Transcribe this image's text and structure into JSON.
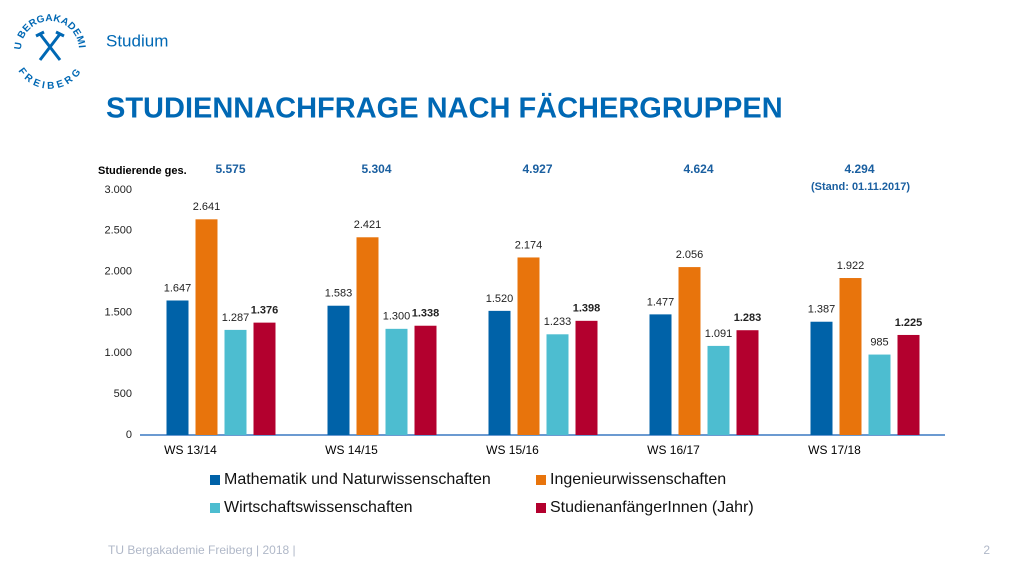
{
  "header": {
    "section": "Studium",
    "title": "STUDIENNACHFRAGE NACH FÄCHERGRUPPEN",
    "logo_top": "TU BERGAKADEMIE",
    "logo_bottom": "FREIBERG"
  },
  "chart_data": {
    "type": "bar",
    "categories": [
      "WS 13/14",
      "WS 14/15",
      "WS 15/16",
      "WS 16/17",
      "WS 17/18"
    ],
    "series": [
      {
        "name": "Mathematik und Naturwissenschaften",
        "color": "#0062a8",
        "values": [
          1647,
          1583,
          1520,
          1477,
          1387
        ],
        "value_labels": [
          "1.647",
          "1.583",
          "1.520",
          "1.477",
          "1.387"
        ]
      },
      {
        "name": "Ingenieurwissenschaften",
        "color": "#e8740c",
        "values": [
          2641,
          2421,
          2174,
          2056,
          1922
        ],
        "value_labels": [
          "2.641",
          "2.421",
          "2.174",
          "2.056",
          "1.922"
        ]
      },
      {
        "name": "Wirtschaftswissenschaften",
        "color": "#4dbdd0",
        "values": [
          1287,
          1300,
          1233,
          1091,
          985
        ],
        "value_labels": [
          "1.287",
          "1.300",
          "1.233",
          "1.091",
          "985"
        ]
      },
      {
        "name": "StudienanfängerInnen (Jahr)",
        "color": "#b3002e",
        "values": [
          1376,
          1338,
          1398,
          1283,
          1225
        ],
        "value_labels": [
          "1.376",
          "1.338",
          "1.398",
          "1.283",
          "1.225"
        ],
        "bold_labels": true
      }
    ],
    "ylim": [
      0,
      3000
    ],
    "yticks": [
      {
        "value": 0,
        "label": "0"
      },
      {
        "value": 500,
        "label": "500"
      },
      {
        "value": 1000,
        "label": "1.000"
      },
      {
        "value": 1500,
        "label": "1.500"
      },
      {
        "value": 2000,
        "label": "2.000"
      },
      {
        "value": 2500,
        "label": "2.500"
      },
      {
        "value": 3000,
        "label": "3.000"
      }
    ],
    "grid": false,
    "totals_label": "Studierende ges.",
    "annotations": [
      "5.575",
      "5.304",
      "4.927",
      "4.624",
      "4.294"
    ],
    "note": "(Stand: 01.11.2017)"
  },
  "footer": {
    "text": "TU Bergakademie Freiberg | 2018 |",
    "page": "2"
  }
}
